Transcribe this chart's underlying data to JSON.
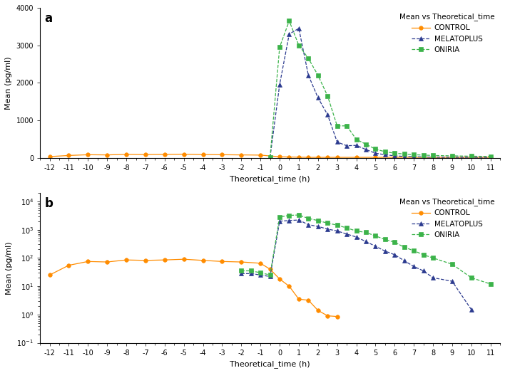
{
  "panel_a": {
    "label": "a",
    "ylabel": "Mean (pg/ml)",
    "xlabel": "Theoretical_time (h)",
    "legend_title": "Mean vs Theoretical_time",
    "xlim": [
      -12.5,
      11.5
    ],
    "ylim": [
      0,
      4000
    ],
    "yticks": [
      0,
      1000,
      2000,
      3000,
      4000
    ],
    "control": {
      "color": "#FF8C00",
      "marker": "o",
      "linestyle": "-",
      "label": "CONTROL",
      "x": [
        -12,
        -11,
        -10,
        -9,
        -8,
        -7,
        -6,
        -5,
        -4,
        -3,
        -2,
        -1,
        0,
        0.5,
        1,
        1.5,
        2,
        2.5,
        3,
        4,
        5,
        6,
        7,
        8,
        9,
        10,
        11
      ],
      "y": [
        30,
        60,
        80,
        75,
        90,
        85,
        90,
        95,
        85,
        80,
        75,
        70,
        25,
        20,
        15,
        10,
        10,
        10,
        10,
        10,
        10,
        10,
        10,
        10,
        10,
        10,
        10
      ]
    },
    "melatoplus": {
      "color": "#2B3A8F",
      "marker": "^",
      "linestyle": "--",
      "label": "MELATOPLUS",
      "x": [
        -0.5,
        0,
        0.5,
        1,
        1.5,
        2,
        2.5,
        3,
        3.5,
        4,
        4.5,
        5,
        5.5,
        6,
        6.5,
        7,
        7.5,
        8,
        9,
        10,
        11
      ],
      "y": [
        10,
        1950,
        3300,
        3450,
        2200,
        1600,
        1150,
        420,
        320,
        330,
        220,
        120,
        80,
        50,
        35,
        25,
        20,
        15,
        10,
        10,
        10
      ]
    },
    "oniria": {
      "color": "#3CB34A",
      "marker": "s",
      "linestyle": "--",
      "label": "ONIRIA",
      "x": [
        -0.5,
        0,
        0.5,
        1,
        1.5,
        2,
        2.5,
        3,
        3.5,
        4,
        4.5,
        5,
        5.5,
        6,
        6.5,
        7,
        7.5,
        8,
        9,
        10,
        11
      ],
      "y": [
        10,
        2950,
        3650,
        3000,
        2650,
        2200,
        1650,
        850,
        850,
        490,
        360,
        230,
        160,
        120,
        100,
        80,
        70,
        60,
        50,
        40,
        35
      ]
    }
  },
  "panel_b": {
    "label": "b",
    "ylabel": "Mean (pg/ml)",
    "xlabel": "Theoretical_time (h)",
    "legend_title": "Mean vs Theoretical_time",
    "xlim": [
      -12.5,
      11.5
    ],
    "ylim_log": [
      0.1,
      20000
    ],
    "control": {
      "color": "#FF8C00",
      "marker": "o",
      "linestyle": "-",
      "label": "CONTROL",
      "x": [
        -12,
        -11,
        -10,
        -9,
        -8,
        -7,
        -6,
        -5,
        -4,
        -3,
        -2,
        -1,
        -0.5,
        0,
        0.5,
        1,
        1.5,
        2,
        2.5,
        3
      ],
      "y": [
        25,
        55,
        75,
        72,
        85,
        82,
        85,
        90,
        82,
        75,
        72,
        65,
        40,
        18,
        10,
        3.5,
        3.2,
        1.4,
        0.9,
        0.85
      ]
    },
    "melatoplus": {
      "color": "#2B3A8F",
      "marker": "^",
      "linestyle": "--",
      "label": "MELATOPLUS",
      "x": [
        -2,
        -1.5,
        -1,
        -0.5,
        0,
        0.5,
        1,
        1.5,
        2,
        2.5,
        3,
        3.5,
        4,
        4.5,
        5,
        5.5,
        6,
        6.5,
        7,
        7.5,
        8,
        9,
        10
      ],
      "y": [
        28,
        28,
        25,
        22,
        2000,
        2100,
        2200,
        1500,
        1300,
        1050,
        900,
        700,
        550,
        380,
        260,
        175,
        130,
        80,
        50,
        35,
        20,
        15,
        1.5
      ]
    },
    "oniria": {
      "color": "#3CB34A",
      "marker": "s",
      "linestyle": "--",
      "label": "ONIRIA",
      "x": [
        -2,
        -1.5,
        -1,
        -0.5,
        0,
        0.5,
        1,
        1.5,
        2,
        2.5,
        3,
        3.5,
        4,
        4.5,
        5,
        5.5,
        6,
        6.5,
        7,
        7.5,
        8,
        9,
        10,
        11
      ],
      "y": [
        35,
        35,
        30,
        25,
        2800,
        3200,
        3300,
        2500,
        2100,
        1700,
        1450,
        1150,
        900,
        800,
        600,
        450,
        360,
        240,
        180,
        130,
        100,
        60,
        20,
        12
      ]
    }
  },
  "xticks": [
    -12,
    -11,
    -10,
    -9,
    -8,
    -7,
    -6,
    -5,
    -4,
    -3,
    -2,
    -1,
    0,
    1,
    2,
    3,
    4,
    5,
    6,
    7,
    8,
    9,
    10,
    11
  ],
  "bg_color": "#ffffff",
  "legend_fontsize": 7.5,
  "axis_fontsize": 8,
  "tick_fontsize": 7
}
